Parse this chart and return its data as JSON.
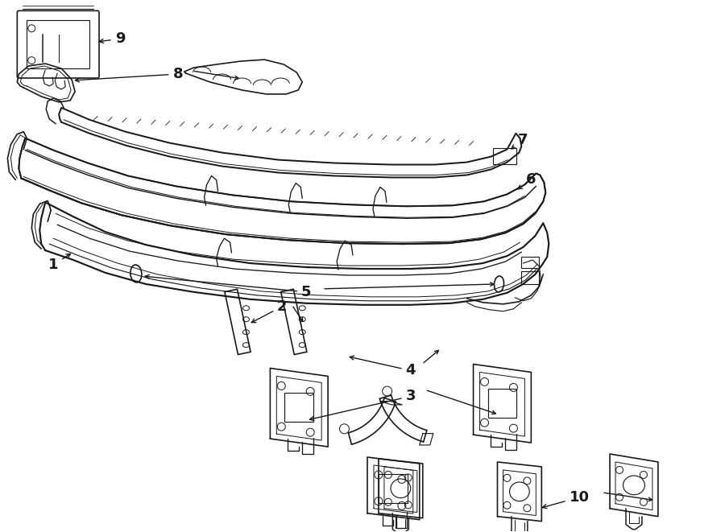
{
  "bg_color": "#ffffff",
  "line_color": "#1a1a1a",
  "lw": 1.2,
  "fs": 13
}
